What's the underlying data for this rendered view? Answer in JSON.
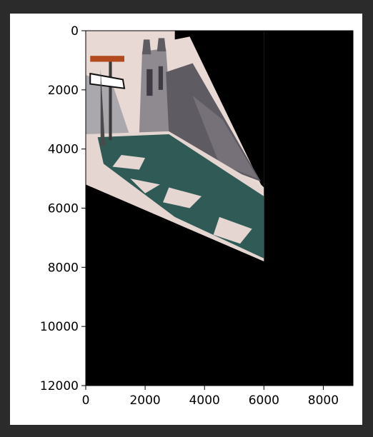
{
  "chart_data": {
    "type": "image",
    "title": "",
    "xlabel": "",
    "ylabel": "",
    "xlim": [
      0,
      9000
    ],
    "ylim": [
      12000,
      0
    ],
    "x_ticks": [
      "0",
      "2000",
      "4000",
      "6000",
      "8000"
    ],
    "y_ticks": [
      "0",
      "2000",
      "4000",
      "6000",
      "8000",
      "10000",
      "12000"
    ],
    "image_region_quad": [
      [
        0,
        0
      ],
      [
        6000,
        0
      ],
      [
        6000,
        7800
      ],
      [
        0,
        5200
      ]
    ],
    "background_color": "#000000",
    "image_content": "warped photograph of a stone church with a street sign on a pole, grass and snow in foreground",
    "grid": false,
    "legend": "none"
  },
  "colors": {
    "frame_background": "#2b2b2b",
    "figure_background": "#ffffff",
    "axes_background": "#000000",
    "sky": "#e9d9d4",
    "stone": "#8e8a90",
    "stone_dark": "#5f5b63",
    "grass": "#2f5a55",
    "snow": "#e6d6d2"
  }
}
